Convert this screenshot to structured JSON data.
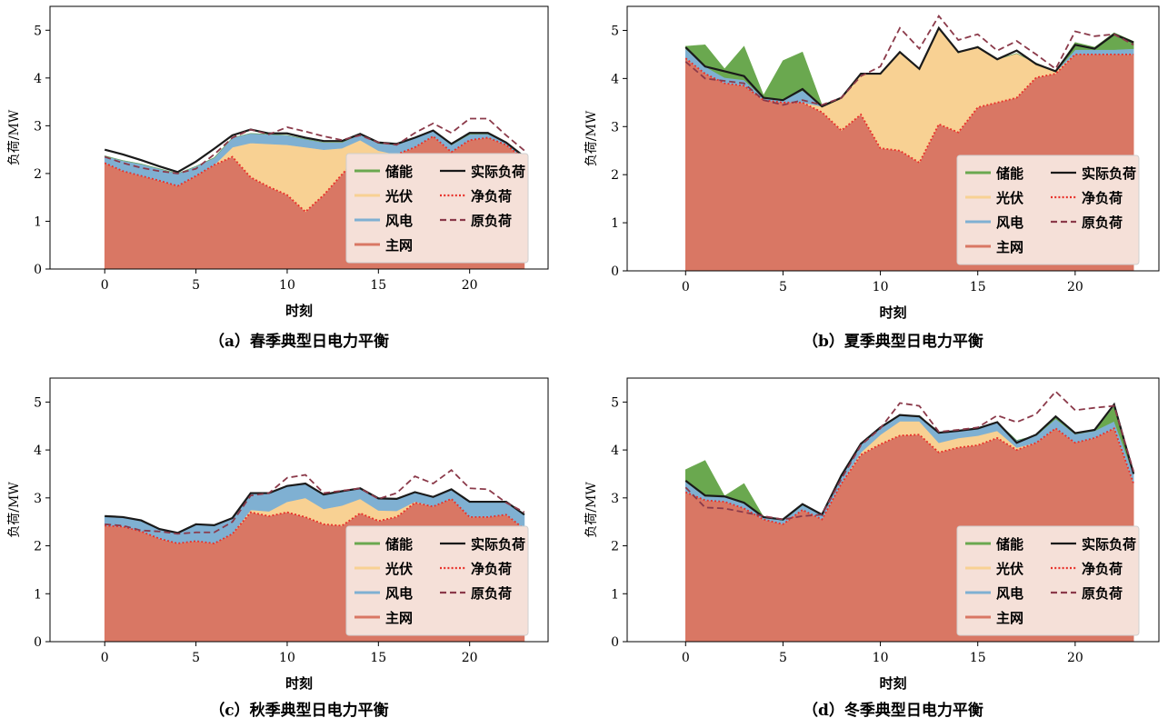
{
  "chart_data": [
    {
      "type": "area",
      "caption": "（a）春季典型日电力平衡",
      "xlabel": "时刻",
      "ylabel": "负荷/MW",
      "xlim": [
        -3,
        24.3
      ],
      "ylim": [
        0,
        5.5
      ],
      "xticks": [
        0,
        5,
        10,
        15,
        20
      ],
      "yticks": [
        0,
        1,
        2,
        3,
        4,
        5
      ],
      "x": [
        0,
        1,
        2,
        3,
        4,
        5,
        6,
        7,
        8,
        9,
        10,
        11,
        12,
        13,
        14,
        15,
        16,
        17,
        18,
        19,
        20,
        21,
        22,
        23
      ],
      "stack": [
        {
          "name": "主网",
          "values": [
            2.22,
            2.05,
            1.95,
            1.85,
            1.74,
            1.95,
            2.18,
            2.35,
            1.92,
            1.72,
            1.55,
            1.2,
            1.55,
            1.98,
            2.4,
            2.38,
            2.4,
            2.55,
            2.78,
            2.45,
            2.7,
            2.75,
            2.6,
            2.3
          ]
        },
        {
          "name": "光伏",
          "values": [
            0,
            0,
            0,
            0,
            0,
            0,
            0,
            0.2,
            0.72,
            0.9,
            1.05,
            1.35,
            0.95,
            0.55,
            0.3,
            0.1,
            0,
            0,
            0,
            0,
            0,
            0,
            0,
            0
          ]
        },
        {
          "name": "风电",
          "values": [
            0.15,
            0.22,
            0.25,
            0.25,
            0.26,
            0.2,
            0.15,
            0.2,
            0.2,
            0.2,
            0.2,
            0.17,
            0.15,
            0.12,
            0.12,
            0.15,
            0.2,
            0.2,
            0.12,
            0.15,
            0.12,
            0.08,
            0.05,
            0.03
          ]
        },
        {
          "name": "储能",
          "values": [
            0,
            0,
            0,
            0,
            0,
            0,
            0,
            0,
            0,
            0,
            0,
            0,
            0,
            0,
            0,
            0,
            0,
            0,
            0,
            0,
            0,
            0,
            0,
            0
          ]
        }
      ],
      "lines": [
        {
          "name": "实际负荷",
          "style": "solid",
          "color": "#1a1a1a",
          "values": [
            2.5,
            2.4,
            2.28,
            2.15,
            2.03,
            2.25,
            2.52,
            2.8,
            2.92,
            2.84,
            2.84,
            2.75,
            2.68,
            2.68,
            2.83,
            2.65,
            2.62,
            2.75,
            2.9,
            2.62,
            2.85,
            2.85,
            2.65,
            2.35
          ]
        },
        {
          "name": "净负荷",
          "style": "dotted",
          "color": "#e8312a",
          "values": [
            2.22,
            2.05,
            1.95,
            1.85,
            1.74,
            1.95,
            2.18,
            2.35,
            1.92,
            1.72,
            1.55,
            1.2,
            1.55,
            1.98,
            2.4,
            2.38,
            2.4,
            2.55,
            2.78,
            2.45,
            2.7,
            2.75,
            2.6,
            2.3
          ]
        },
        {
          "name": "原负荷",
          "style": "dashed",
          "color": "#8b3a4a",
          "values": [
            2.35,
            2.22,
            2.12,
            2.05,
            2.0,
            2.1,
            2.4,
            2.75,
            2.92,
            2.82,
            2.97,
            2.88,
            2.78,
            2.7,
            2.8,
            2.65,
            2.6,
            2.85,
            3.05,
            2.85,
            3.15,
            3.15,
            2.8,
            2.48
          ]
        }
      ],
      "legend": {
        "position": "lower-right",
        "columns": 2,
        "entries": [
          "储能",
          "实际负荷",
          "光伏",
          "净负荷",
          "风电",
          "原负荷",
          "主网"
        ]
      }
    },
    {
      "type": "area",
      "caption": "（b）夏季典型日电力平衡",
      "xlabel": "时刻",
      "ylabel": "负荷/MW",
      "xlim": [
        -3,
        24.3
      ],
      "ylim": [
        0,
        5.5
      ],
      "xticks": [
        0,
        5,
        10,
        15,
        20
      ],
      "yticks": [
        0,
        1,
        2,
        3,
        4,
        5
      ],
      "x": [
        0,
        1,
        2,
        3,
        4,
        5,
        6,
        7,
        8,
        9,
        10,
        11,
        12,
        13,
        14,
        15,
        16,
        17,
        18,
        19,
        20,
        21,
        22,
        23
      ],
      "stack": [
        {
          "name": "主网",
          "values": [
            4.42,
            4.1,
            3.9,
            3.85,
            3.55,
            3.5,
            3.5,
            3.3,
            2.92,
            3.25,
            2.55,
            2.5,
            2.25,
            3.05,
            2.88,
            3.4,
            3.5,
            3.6,
            4.02,
            4.1,
            4.5,
            4.5,
            4.5,
            4.5
          ]
        },
        {
          "name": "光伏",
          "values": [
            0,
            0,
            0,
            0,
            0,
            0,
            0,
            0.12,
            0.68,
            0.85,
            1.55,
            2.05,
            1.95,
            1.98,
            1.65,
            1.27,
            0.9,
            0.92,
            0.3,
            0.05,
            0,
            0,
            0,
            0
          ]
        },
        {
          "name": "风电",
          "values": [
            0.2,
            0.15,
            0.12,
            0.12,
            0.05,
            0.05,
            0.25,
            0.03,
            0,
            0,
            0,
            0,
            0,
            0,
            0,
            0,
            0,
            0,
            0,
            0,
            0.1,
            0.1,
            0.1,
            0.12
          ]
        },
        {
          "name": "储能",
          "values": [
            0.05,
            0.45,
            0.18,
            0.7,
            0.05,
            0.82,
            0.8,
            0,
            0,
            0,
            0,
            0,
            0,
            0,
            0,
            0,
            0,
            0,
            0,
            0,
            0.15,
            0.05,
            0.35,
            0.15
          ]
        }
      ],
      "lines": [
        {
          "name": "实际负荷",
          "style": "solid",
          "color": "#1a1a1a",
          "values": [
            4.65,
            4.25,
            4.15,
            4.05,
            3.6,
            3.55,
            3.78,
            3.42,
            3.6,
            4.1,
            4.1,
            4.55,
            4.2,
            5.05,
            4.55,
            4.65,
            4.4,
            4.58,
            4.3,
            4.15,
            4.7,
            4.62,
            4.92,
            4.75
          ]
        },
        {
          "name": "净负荷",
          "style": "dotted",
          "color": "#e8312a",
          "values": [
            4.42,
            4.1,
            3.9,
            3.85,
            3.55,
            3.5,
            3.5,
            3.3,
            2.92,
            3.25,
            2.55,
            2.5,
            2.25,
            3.05,
            2.88,
            3.4,
            3.5,
            3.6,
            4.02,
            4.1,
            4.5,
            4.5,
            4.5,
            4.5
          ]
        },
        {
          "name": "原负荷",
          "style": "dashed",
          "color": "#8b3a4a",
          "values": [
            4.35,
            4.0,
            3.95,
            3.9,
            3.55,
            3.45,
            3.55,
            3.45,
            3.6,
            4.05,
            4.25,
            5.05,
            4.62,
            5.3,
            4.8,
            4.92,
            4.58,
            4.78,
            4.5,
            4.2,
            4.98,
            4.88,
            4.92,
            4.7
          ]
        }
      ],
      "legend": {
        "position": "lower-right",
        "columns": 2,
        "entries": [
          "储能",
          "实际负荷",
          "光伏",
          "净负荷",
          "风电",
          "原负荷",
          "主网"
        ]
      }
    },
    {
      "type": "area",
      "caption": "（c）秋季典型日电力平衡",
      "xlabel": "时刻",
      "ylabel": "负荷/MW",
      "xlim": [
        -3,
        24.3
      ],
      "ylim": [
        0,
        5.5
      ],
      "xticks": [
        0,
        5,
        10,
        15,
        20
      ],
      "yticks": [
        0,
        1,
        2,
        3,
        4,
        5
      ],
      "x": [
        0,
        1,
        2,
        3,
        4,
        5,
        6,
        7,
        8,
        9,
        10,
        11,
        12,
        13,
        14,
        15,
        16,
        17,
        18,
        19,
        20,
        21,
        22,
        23
      ],
      "stack": [
        {
          "name": "主网",
          "values": [
            2.42,
            2.4,
            2.3,
            2.15,
            2.05,
            2.1,
            2.05,
            2.25,
            2.7,
            2.62,
            2.7,
            2.6,
            2.45,
            2.42,
            2.68,
            2.52,
            2.6,
            2.9,
            2.82,
            2.98,
            2.6,
            2.6,
            2.65,
            2.35
          ]
        },
        {
          "name": "光伏",
          "values": [
            0,
            0,
            0,
            0,
            0,
            0,
            0,
            0,
            0.05,
            0.1,
            0.22,
            0.4,
            0.32,
            0.42,
            0.3,
            0.22,
            0.13,
            0.02,
            0,
            0,
            0,
            0,
            0,
            0
          ]
        },
        {
          "name": "风电",
          "values": [
            0.2,
            0.2,
            0.23,
            0.2,
            0.22,
            0.35,
            0.38,
            0.33,
            0.35,
            0.38,
            0.33,
            0.3,
            0.3,
            0.3,
            0.22,
            0.25,
            0.25,
            0.2,
            0.2,
            0.2,
            0.32,
            0.32,
            0.27,
            0.3
          ]
        },
        {
          "name": "储能",
          "values": [
            0,
            0,
            0,
            0,
            0,
            0,
            0,
            0,
            0,
            0,
            0,
            0,
            0,
            0,
            0,
            0,
            0,
            0,
            0,
            0,
            0,
            0,
            0,
            0
          ]
        }
      ],
      "lines": [
        {
          "name": "实际负荷",
          "style": "solid",
          "color": "#1a1a1a",
          "values": [
            2.62,
            2.6,
            2.53,
            2.35,
            2.27,
            2.45,
            2.43,
            2.58,
            3.1,
            3.1,
            3.25,
            3.3,
            3.07,
            3.14,
            3.2,
            2.99,
            2.98,
            3.12,
            3.02,
            3.18,
            2.92,
            2.92,
            2.92,
            2.65
          ]
        },
        {
          "name": "净负荷",
          "style": "dotted",
          "color": "#e8312a",
          "values": [
            2.42,
            2.4,
            2.3,
            2.15,
            2.05,
            2.1,
            2.05,
            2.25,
            2.7,
            2.62,
            2.7,
            2.6,
            2.45,
            2.42,
            2.68,
            2.52,
            2.6,
            2.9,
            2.82,
            2.98,
            2.6,
            2.6,
            2.65,
            2.35
          ]
        },
        {
          "name": "原负荷",
          "style": "dashed",
          "color": "#8b3a4a",
          "values": [
            2.45,
            2.42,
            2.32,
            2.3,
            2.25,
            2.28,
            2.28,
            2.5,
            3.05,
            3.1,
            3.42,
            3.48,
            3.1,
            3.15,
            3.2,
            2.98,
            3.1,
            3.45,
            3.3,
            3.58,
            3.2,
            3.18,
            2.9,
            2.7
          ]
        }
      ],
      "legend": {
        "position": "lower-right",
        "columns": 2,
        "entries": [
          "储能",
          "实际负荷",
          "光伏",
          "净负荷",
          "风电",
          "原负荷",
          "主网"
        ]
      }
    },
    {
      "type": "area",
      "caption": "（d）冬季典型日电力平衡",
      "xlabel": "时刻",
      "ylabel": "负荷/MW",
      "xlim": [
        -3,
        24.3
      ],
      "ylim": [
        0,
        5.5
      ],
      "xticks": [
        0,
        5,
        10,
        15,
        20
      ],
      "yticks": [
        0,
        1,
        2,
        3,
        4,
        5
      ],
      "x": [
        0,
        1,
        2,
        3,
        4,
        5,
        6,
        7,
        8,
        9,
        10,
        11,
        12,
        13,
        14,
        15,
        16,
        17,
        18,
        19,
        20,
        21,
        22,
        23
      ],
      "stack": [
        {
          "name": "主网",
          "values": [
            3.12,
            2.95,
            2.92,
            2.78,
            2.55,
            2.45,
            2.75,
            2.55,
            3.3,
            3.9,
            4.12,
            4.3,
            4.32,
            3.95,
            4.05,
            4.1,
            4.25,
            4.0,
            4.15,
            4.45,
            4.15,
            4.25,
            4.45,
            3.3
          ]
        },
        {
          "name": "光伏",
          "values": [
            0,
            0,
            0,
            0,
            0,
            0,
            0,
            0,
            0,
            0.05,
            0.2,
            0.3,
            0.28,
            0.2,
            0.2,
            0.2,
            0.15,
            0.05,
            0,
            0,
            0,
            0,
            0,
            0
          ]
        },
        {
          "name": "风电",
          "values": [
            0.22,
            0.08,
            0.1,
            0.1,
            0.05,
            0.08,
            0.1,
            0.1,
            0.15,
            0.18,
            0.15,
            0.12,
            0.12,
            0.2,
            0.15,
            0.15,
            0.18,
            0.15,
            0.15,
            0.2,
            0.18,
            0.15,
            0.15,
            0.2
          ]
        },
        {
          "name": "储能",
          "values": [
            0.25,
            0.75,
            0.02,
            0.42,
            0,
            0,
            0,
            0,
            0,
            0,
            0,
            0,
            0,
            0,
            0,
            0,
            0,
            0,
            0,
            0.05,
            0,
            0,
            0.3,
            0
          ]
        }
      ],
      "lines": [
        {
          "name": "实际负荷",
          "style": "solid",
          "color": "#1a1a1a",
          "values": [
            3.36,
            3.05,
            3.03,
            2.9,
            2.6,
            2.55,
            2.87,
            2.65,
            3.47,
            4.13,
            4.47,
            4.73,
            4.7,
            4.36,
            4.4,
            4.45,
            4.58,
            4.15,
            4.32,
            4.7,
            4.35,
            4.42,
            4.95,
            3.5
          ]
        },
        {
          "name": "净负荷",
          "style": "dotted",
          "color": "#e8312a",
          "values": [
            3.12,
            2.95,
            2.92,
            2.78,
            2.55,
            2.45,
            2.75,
            2.55,
            3.3,
            3.9,
            4.12,
            4.3,
            4.32,
            3.95,
            4.05,
            4.1,
            4.25,
            4.0,
            4.15,
            4.45,
            4.15,
            4.25,
            4.45,
            3.3
          ]
        },
        {
          "name": "原负荷",
          "style": "dashed",
          "color": "#8b3a4a",
          "values": [
            3.22,
            2.8,
            2.78,
            2.7,
            2.62,
            2.55,
            2.62,
            2.65,
            3.4,
            4.1,
            4.45,
            4.98,
            4.92,
            4.38,
            4.42,
            4.47,
            4.72,
            4.58,
            4.75,
            5.22,
            4.83,
            4.88,
            4.92,
            3.55
          ]
        }
      ],
      "legend": {
        "position": "lower-right",
        "columns": 2,
        "entries": [
          "储能",
          "实际负荷",
          "光伏",
          "净负荷",
          "风电",
          "原负荷",
          "主网"
        ]
      }
    }
  ],
  "colors": {
    "主网": "#d97764",
    "光伏": "#f8d193",
    "风电": "#7fb0d2",
    "储能": "#6aa84f",
    "legend_bg": "#f5e0d8"
  }
}
